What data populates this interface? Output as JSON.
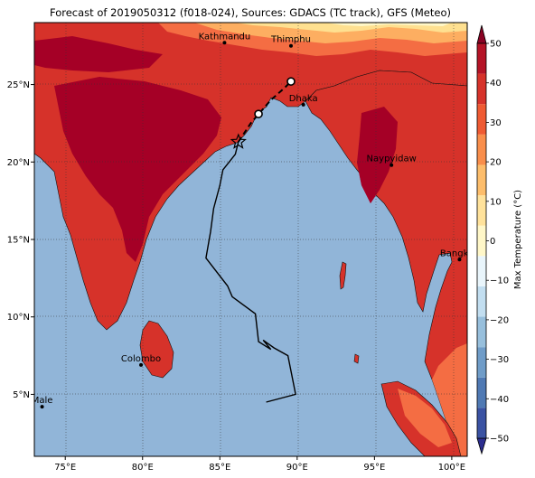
{
  "title": "Forecast of 2019050312 (f018-024), Sources: GDACS (TC track), GFS (Meteo)",
  "colorbar": {
    "label": "Max Temperature (°C)",
    "ticks": [
      "50",
      "40",
      "30",
      "20",
      "10",
      "0",
      "−10",
      "−20",
      "−30",
      "−40",
      "−50"
    ],
    "colors": [
      "#2c2d8f",
      "#3a52a2",
      "#4f79b3",
      "#6f9cc8",
      "#97bfdc",
      "#c2def0",
      "#e9f5fb",
      "#fff7c8",
      "#ffe29b",
      "#fdbd6b",
      "#f98e4b",
      "#ef5a32",
      "#d6322a",
      "#b41326",
      "#8a0324"
    ]
  },
  "axes": {
    "x_ticks": [
      "75°E",
      "80°E",
      "85°E",
      "90°E",
      "95°E",
      "100°E"
    ],
    "y_ticks": [
      "25°N",
      "20°N",
      "15°N",
      "10°N",
      "5°N"
    ],
    "lon_range": [
      73.0,
      101.0
    ],
    "lat_range": [
      1.0,
      29.0
    ]
  },
  "colors": {
    "sea": "#91b5d8",
    "land_hot": "#d6322a",
    "land_very_hot": "#a50026",
    "land_warm": "#f46d43",
    "land_mild": "#fdae61",
    "land_cool": "#fee090",
    "land_cold": "#fff7c8"
  },
  "cities": [
    {
      "name": "Kathmandu",
      "lon": 85.3,
      "lat": 27.7
    },
    {
      "name": "Thimphu",
      "lon": 89.6,
      "lat": 27.5
    },
    {
      "name": "Dhaka",
      "lon": 90.4,
      "lat": 23.7
    },
    {
      "name": "Naypyidaw",
      "lon": 96.1,
      "lat": 19.8
    },
    {
      "name": "Bangkok",
      "lon": 100.5,
      "lat": 13.7
    },
    {
      "name": "Colombo",
      "lon": 79.9,
      "lat": 6.9
    },
    {
      "name": "Male",
      "lon": 73.5,
      "lat": 4.2
    }
  ],
  "track_observed": [
    [
      88.0,
      4.5
    ],
    [
      89.9,
      5.0
    ],
    [
      89.4,
      7.5
    ],
    [
      88.5,
      8.0
    ],
    [
      87.8,
      8.5
    ],
    [
      88.3,
      7.9
    ],
    [
      87.5,
      8.4
    ],
    [
      87.3,
      10.2
    ],
    [
      85.8,
      11.3
    ],
    [
      85.5,
      12.0
    ],
    [
      84.1,
      13.8
    ],
    [
      84.4,
      15.5
    ],
    [
      84.6,
      17.0
    ],
    [
      85.0,
      18.5
    ],
    [
      85.2,
      19.5
    ],
    [
      86.0,
      20.5
    ],
    [
      86.2,
      21.3
    ]
  ],
  "track_forecast": [
    [
      86.2,
      21.3
    ],
    [
      87.0,
      22.5
    ],
    [
      87.6,
      23.2
    ],
    [
      88.3,
      24.0
    ],
    [
      89.2,
      24.8
    ],
    [
      89.6,
      25.2
    ]
  ],
  "track_points": [
    {
      "lon": 86.2,
      "lat": 21.3,
      "symbol": "star"
    },
    {
      "lon": 87.5,
      "lat": 23.1,
      "symbol": "circle"
    },
    {
      "lon": 89.6,
      "lat": 25.2,
      "symbol": "circle"
    }
  ]
}
